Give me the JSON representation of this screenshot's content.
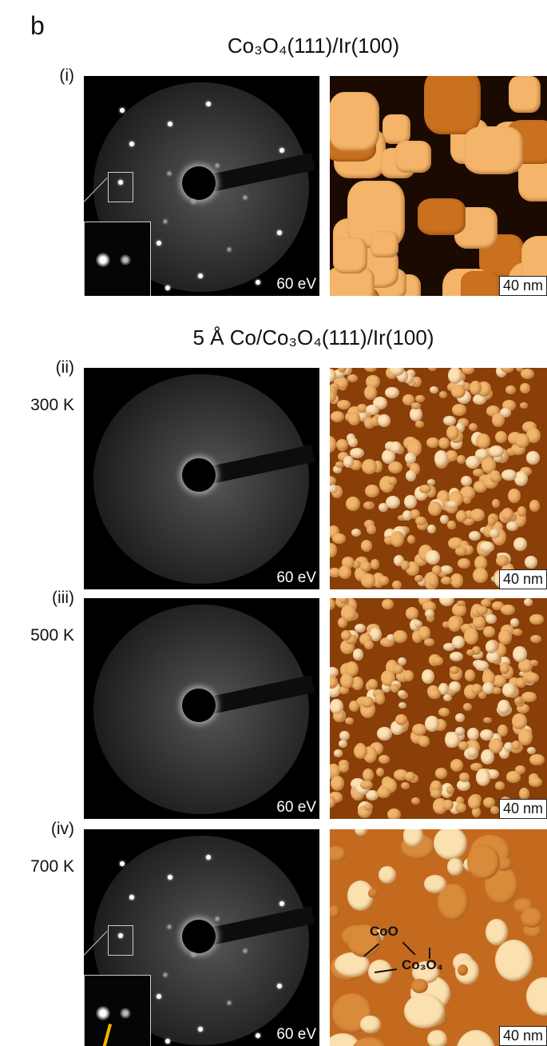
{
  "panel_label": "b",
  "sections": [
    {
      "title": "Co₃O₄(111)/Ir(100)"
    },
    {
      "title": "5 Å Co/Co₃O₄(111)/Ir(100)"
    }
  ],
  "rows": [
    {
      "label": "(i)",
      "leed_energy": "60 eV",
      "stm_scale": "40 nm"
    },
    {
      "label": "(ii)",
      "temperature": "300 K",
      "leed_energy": "60 eV",
      "stm_scale": "40 nm"
    },
    {
      "label": "(iii)",
      "temperature": "500 K",
      "leed_energy": "60 eV",
      "stm_scale": "40 nm"
    },
    {
      "label": "(iv)",
      "temperature": "700 K",
      "leed_energy": "60 eV",
      "stm_scale": "40 nm",
      "annotations": [
        "CoO",
        "Co₃O₄"
      ]
    }
  ]
}
